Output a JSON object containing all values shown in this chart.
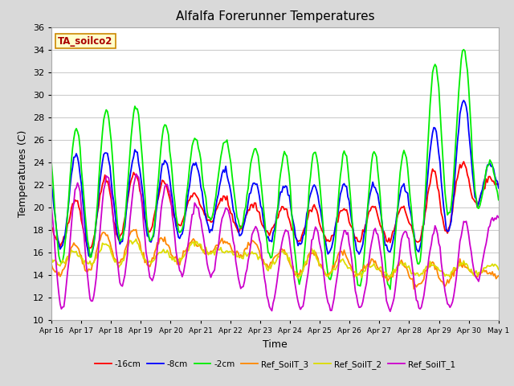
{
  "title": "Alfalfa Forerunner Temperatures",
  "xlabel": "Time",
  "ylabel": "Temperatures (C)",
  "annotation": "TA_soilco2",
  "ylim": [
    10,
    36
  ],
  "yticks": [
    10,
    12,
    14,
    16,
    18,
    20,
    22,
    24,
    26,
    28,
    30,
    32,
    34,
    36
  ],
  "xtick_labels": [
    "Apr 16",
    "Apr 17",
    "Apr 18",
    "Apr 19",
    "Apr 20",
    "Apr 21",
    "Apr 22",
    "Apr 23",
    "Apr 24",
    "Apr 25",
    "Apr 26",
    "Apr 27",
    "Apr 28",
    "Apr 29",
    "Apr 30",
    "May 1"
  ],
  "series_colors": {
    "-16cm": "#ff0000",
    "-8cm": "#0000ff",
    "-2cm": "#00ee00",
    "Ref_SoilT_3": "#ff8800",
    "Ref_SoilT_2": "#dddd00",
    "Ref_SoilT_1": "#cc00cc"
  },
  "fig_bg": "#d9d9d9",
  "plot_bg": "#ffffff",
  "grid_color": "#cccccc",
  "title_fontsize": 11,
  "annotation_color": "#aa0000",
  "annotation_bg": "#ffffcc",
  "annotation_border": "#cc8800",
  "linewidth": 1.3
}
